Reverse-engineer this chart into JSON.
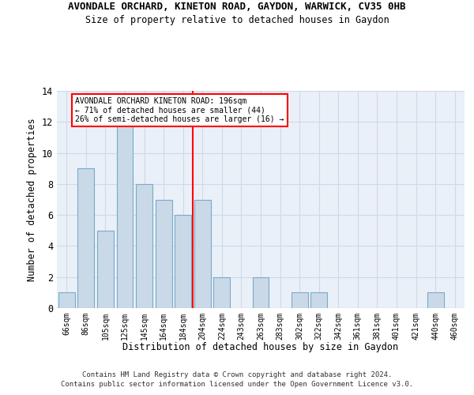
{
  "title_line1": "AVONDALE ORCHARD, KINETON ROAD, GAYDON, WARWICK, CV35 0HB",
  "title_line2": "Size of property relative to detached houses in Gaydon",
  "xlabel": "Distribution of detached houses by size in Gaydon",
  "ylabel": "Number of detached properties",
  "footer_line1": "Contains HM Land Registry data © Crown copyright and database right 2024.",
  "footer_line2": "Contains public sector information licensed under the Open Government Licence v3.0.",
  "bar_labels": [
    "66sqm",
    "86sqm",
    "105sqm",
    "125sqm",
    "145sqm",
    "164sqm",
    "184sqm",
    "204sqm",
    "224sqm",
    "243sqm",
    "263sqm",
    "283sqm",
    "302sqm",
    "322sqm",
    "342sqm",
    "361sqm",
    "381sqm",
    "401sqm",
    "421sqm",
    "440sqm",
    "460sqm"
  ],
  "bar_values": [
    1,
    9,
    5,
    12,
    8,
    7,
    6,
    7,
    2,
    0,
    2,
    0,
    1,
    1,
    0,
    0,
    0,
    0,
    0,
    1,
    0
  ],
  "bar_color": "#c9d9e8",
  "bar_edge_color": "#7aaac8",
  "property_line_x": 6.5,
  "annotation_text": "AVONDALE ORCHARD KINETON ROAD: 196sqm\n← 71% of detached houses are smaller (44)\n26% of semi-detached houses are larger (16) →",
  "annotation_box_color": "white",
  "annotation_box_edge_color": "red",
  "line_color": "red",
  "ylim": [
    0,
    14
  ],
  "yticks": [
    0,
    2,
    4,
    6,
    8,
    10,
    12,
    14
  ],
  "grid_color": "#d0d8e8",
  "background_color": "#eaf0f8"
}
